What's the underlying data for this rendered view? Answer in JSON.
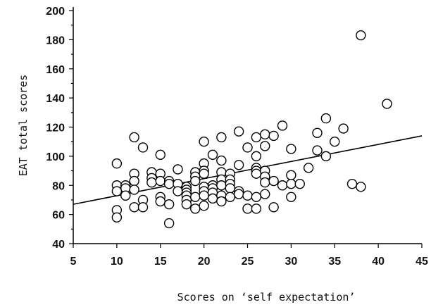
{
  "chart_data": {
    "type": "scatter",
    "xlabel": "Scores on ‘self expectation’",
    "ylabel": "EAT total scores",
    "xlim": [
      5,
      45
    ],
    "ylim": [
      40,
      200
    ],
    "xticks": [
      5,
      10,
      15,
      20,
      25,
      30,
      35,
      40,
      45
    ],
    "yticks": [
      40,
      60,
      80,
      100,
      120,
      140,
      160,
      180,
      200
    ],
    "grid": false,
    "legend": "none",
    "marker": "open-circle",
    "trendline": {
      "type": "linear",
      "points": [
        [
          5,
          67
        ],
        [
          45,
          114
        ]
      ]
    },
    "points": [
      {
        "x": 10,
        "y": 95
      },
      {
        "x": 10,
        "y": 80
      },
      {
        "x": 10,
        "y": 76
      },
      {
        "x": 10,
        "y": 63
      },
      {
        "x": 10,
        "y": 58
      },
      {
        "x": 11,
        "y": 80
      },
      {
        "x": 11,
        "y": 78
      },
      {
        "x": 11,
        "y": 73
      },
      {
        "x": 12,
        "y": 113
      },
      {
        "x": 12,
        "y": 88
      },
      {
        "x": 12,
        "y": 83
      },
      {
        "x": 12,
        "y": 77
      },
      {
        "x": 12,
        "y": 65
      },
      {
        "x": 13,
        "y": 106
      },
      {
        "x": 13,
        "y": 70
      },
      {
        "x": 13,
        "y": 65
      },
      {
        "x": 14,
        "y": 89
      },
      {
        "x": 14,
        "y": 85
      },
      {
        "x": 14,
        "y": 82
      },
      {
        "x": 15,
        "y": 101
      },
      {
        "x": 15,
        "y": 88
      },
      {
        "x": 15,
        "y": 83
      },
      {
        "x": 15,
        "y": 72
      },
      {
        "x": 15,
        "y": 69
      },
      {
        "x": 16,
        "y": 83
      },
      {
        "x": 16,
        "y": 81
      },
      {
        "x": 16,
        "y": 67
      },
      {
        "x": 16,
        "y": 54
      },
      {
        "x": 17,
        "y": 91
      },
      {
        "x": 17,
        "y": 81
      },
      {
        "x": 17,
        "y": 76
      },
      {
        "x": 18,
        "y": 79
      },
      {
        "x": 18,
        "y": 77
      },
      {
        "x": 18,
        "y": 75
      },
      {
        "x": 18,
        "y": 73
      },
      {
        "x": 18,
        "y": 70
      },
      {
        "x": 18,
        "y": 67
      },
      {
        "x": 19,
        "y": 89
      },
      {
        "x": 19,
        "y": 86
      },
      {
        "x": 19,
        "y": 83
      },
      {
        "x": 19,
        "y": 72
      },
      {
        "x": 19,
        "y": 64
      },
      {
        "x": 20,
        "y": 110
      },
      {
        "x": 20,
        "y": 95
      },
      {
        "x": 20,
        "y": 90
      },
      {
        "x": 20,
        "y": 88
      },
      {
        "x": 20,
        "y": 79
      },
      {
        "x": 20,
        "y": 76
      },
      {
        "x": 20,
        "y": 73
      },
      {
        "x": 20,
        "y": 66
      },
      {
        "x": 21,
        "y": 101
      },
      {
        "x": 21,
        "y": 80
      },
      {
        "x": 21,
        "y": 78
      },
      {
        "x": 21,
        "y": 75
      },
      {
        "x": 21,
        "y": 71
      },
      {
        "x": 22,
        "y": 113
      },
      {
        "x": 22,
        "y": 97
      },
      {
        "x": 22,
        "y": 89
      },
      {
        "x": 22,
        "y": 84
      },
      {
        "x": 22,
        "y": 80
      },
      {
        "x": 22,
        "y": 73
      },
      {
        "x": 22,
        "y": 69
      },
      {
        "x": 23,
        "y": 88
      },
      {
        "x": 23,
        "y": 84
      },
      {
        "x": 23,
        "y": 81
      },
      {
        "x": 23,
        "y": 78
      },
      {
        "x": 23,
        "y": 72
      },
      {
        "x": 24,
        "y": 117
      },
      {
        "x": 24,
        "y": 94
      },
      {
        "x": 24,
        "y": 76
      },
      {
        "x": 24,
        "y": 74
      },
      {
        "x": 25,
        "y": 106
      },
      {
        "x": 25,
        "y": 73
      },
      {
        "x": 25,
        "y": 64
      },
      {
        "x": 26,
        "y": 113
      },
      {
        "x": 26,
        "y": 100
      },
      {
        "x": 26,
        "y": 92
      },
      {
        "x": 26,
        "y": 90
      },
      {
        "x": 26,
        "y": 88
      },
      {
        "x": 26,
        "y": 72
      },
      {
        "x": 26,
        "y": 64
      },
      {
        "x": 27,
        "y": 115
      },
      {
        "x": 27,
        "y": 107
      },
      {
        "x": 27,
        "y": 90
      },
      {
        "x": 27,
        "y": 86
      },
      {
        "x": 27,
        "y": 82
      },
      {
        "x": 27,
        "y": 74
      },
      {
        "x": 28,
        "y": 114
      },
      {
        "x": 28,
        "y": 83
      },
      {
        "x": 28,
        "y": 65
      },
      {
        "x": 29,
        "y": 121
      },
      {
        "x": 29,
        "y": 80
      },
      {
        "x": 30,
        "y": 105
      },
      {
        "x": 30,
        "y": 87
      },
      {
        "x": 30,
        "y": 81
      },
      {
        "x": 30,
        "y": 72
      },
      {
        "x": 31,
        "y": 81
      },
      {
        "x": 32,
        "y": 92
      },
      {
        "x": 33,
        "y": 116
      },
      {
        "x": 33,
        "y": 104
      },
      {
        "x": 34,
        "y": 126
      },
      {
        "x": 34,
        "y": 100
      },
      {
        "x": 35,
        "y": 110
      },
      {
        "x": 36,
        "y": 119
      },
      {
        "x": 37,
        "y": 81
      },
      {
        "x": 38,
        "y": 183
      },
      {
        "x": 38,
        "y": 79
      },
      {
        "x": 41,
        "y": 136
      }
    ]
  }
}
